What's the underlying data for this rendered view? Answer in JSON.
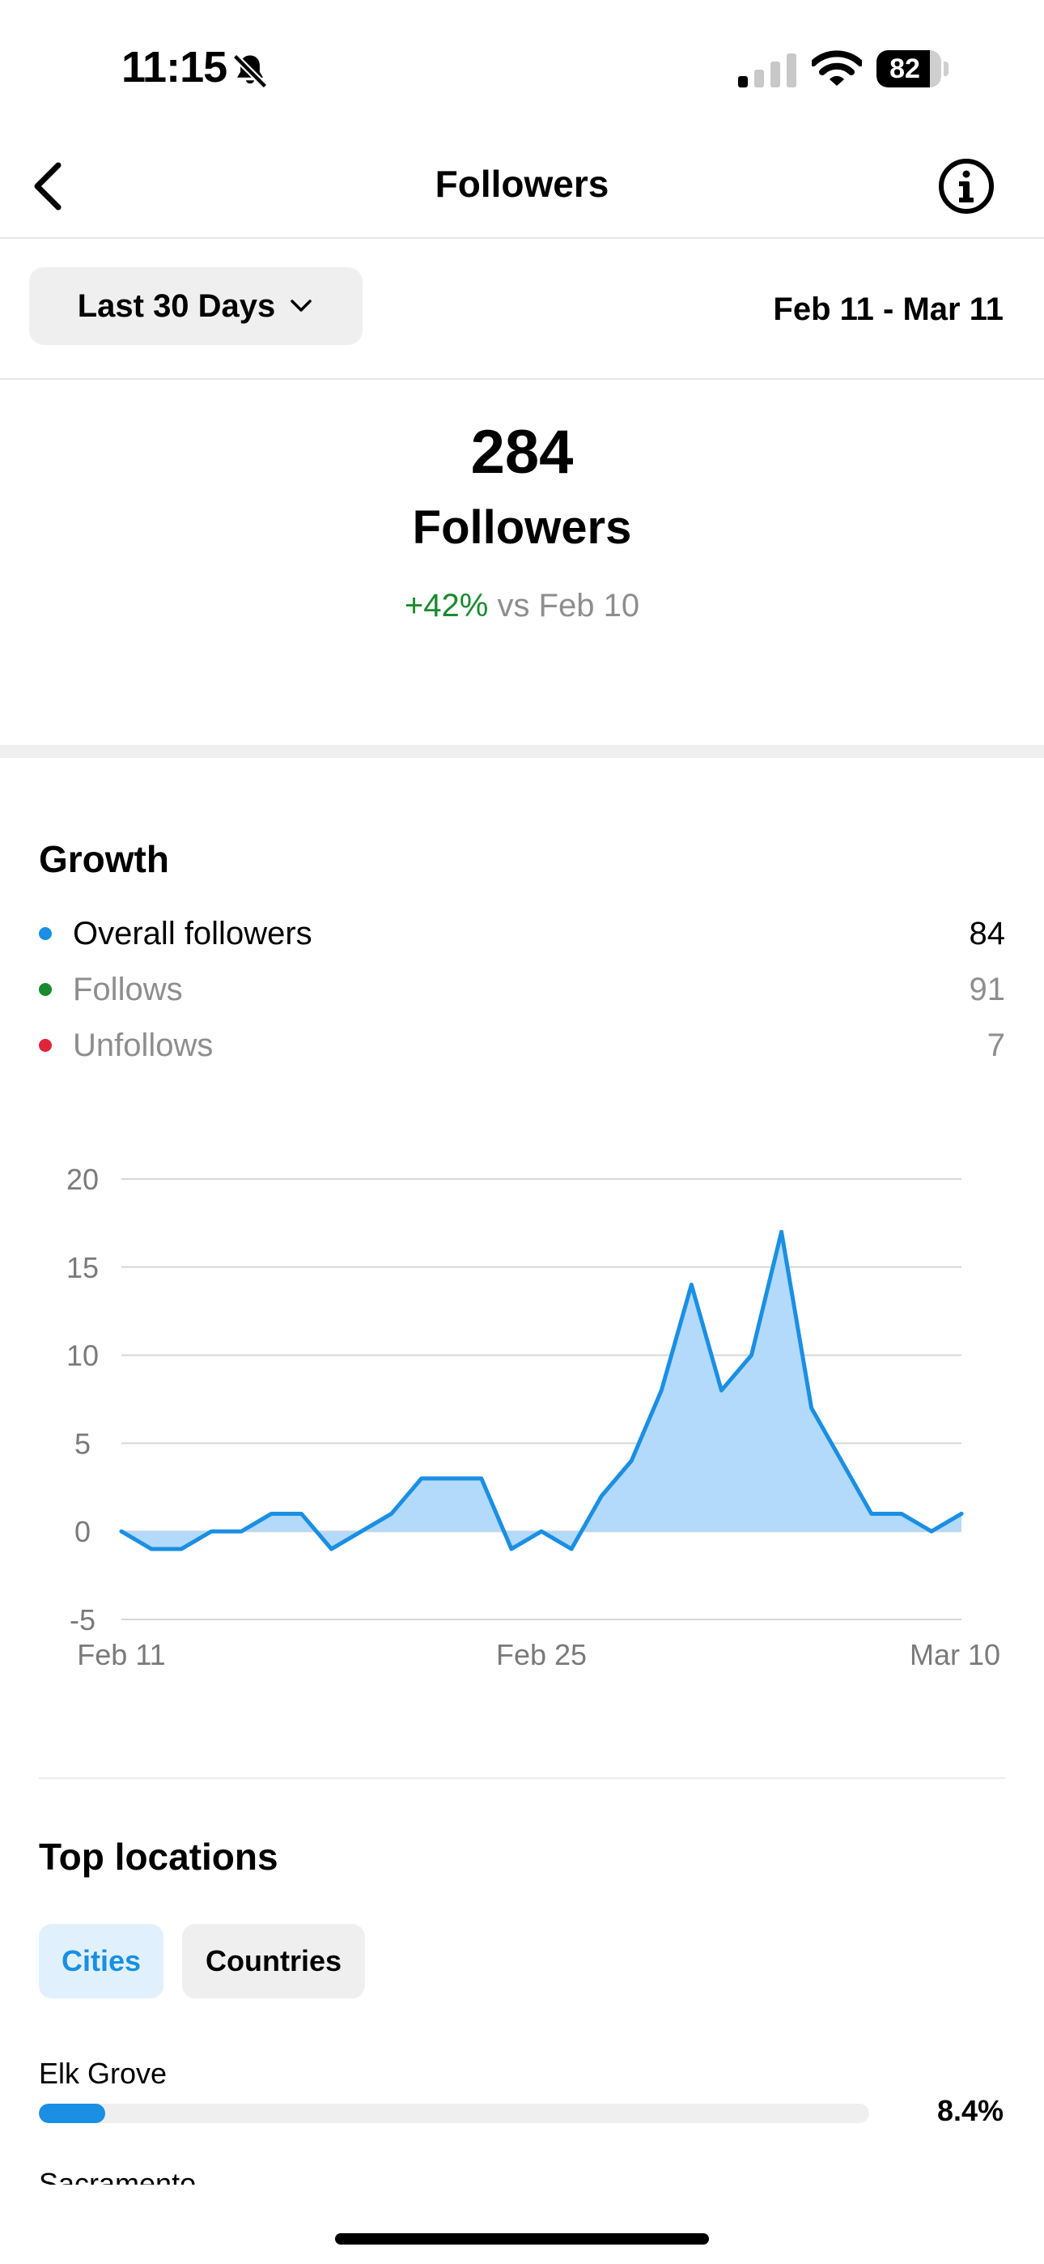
{
  "status_bar": {
    "time": "11:15",
    "battery": "82",
    "battery_level": 0.82
  },
  "nav": {
    "title": "Followers",
    "back_icon": "chevron-left-icon",
    "info_icon": "info-circle-icon"
  },
  "date_range": {
    "selected": "Last 30 Days",
    "range_text": "Feb 11 - Mar 11"
  },
  "summary": {
    "count": "284",
    "label": "Followers",
    "change": "+42%",
    "comparison": "vs Feb 10"
  },
  "growth": {
    "title": "Growth",
    "legend": [
      {
        "label": "Overall followers",
        "value": "84",
        "color": "#1a8fe3"
      },
      {
        "label": "Follows",
        "value": "91",
        "color": "#1a8a2e"
      },
      {
        "label": "Unfollows",
        "value": "7",
        "color": "#e0243a"
      }
    ]
  },
  "chart_data": {
    "type": "area",
    "series": [
      {
        "values": [
          0,
          -1,
          -1,
          0,
          0,
          1,
          1,
          -1,
          0,
          1,
          3,
          3,
          3,
          -1,
          0,
          -1,
          2,
          4,
          8,
          14,
          8,
          10,
          17,
          7,
          4,
          1,
          1,
          0,
          1
        ]
      }
    ],
    "x_tick_labels": [
      "Feb 11",
      "Feb 25",
      "Mar 10"
    ],
    "x_tick_index": [
      0,
      14,
      28
    ],
    "y_ticks": [
      20,
      15,
      10,
      5,
      0,
      -5
    ],
    "ylim": [
      -5,
      20
    ],
    "grid": true,
    "line_color": "#1a8fe3",
    "fill_color": "#b3d9fb"
  },
  "locations": {
    "title": "Top locations",
    "tabs": [
      "Cities",
      "Countries"
    ],
    "active_tab": "Cities",
    "items": [
      {
        "name": "Elk Grove",
        "pct": "8.4%",
        "share": 0.084
      },
      {
        "name": "Sacramento"
      }
    ]
  }
}
